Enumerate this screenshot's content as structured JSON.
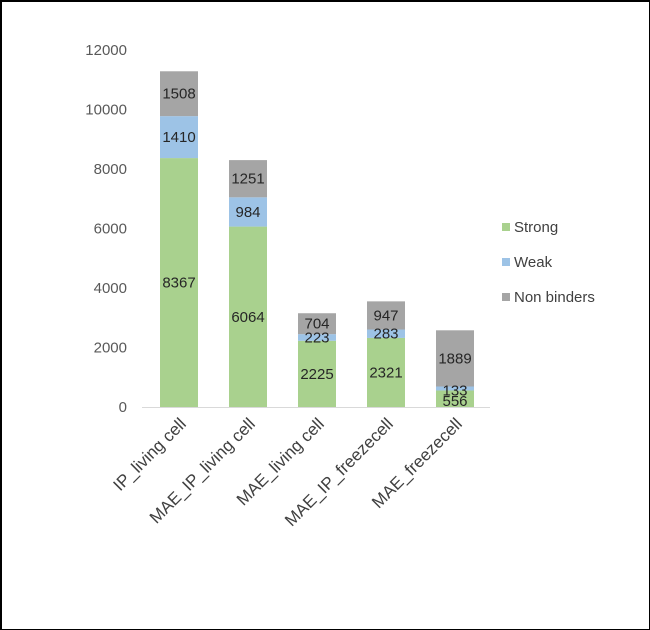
{
  "chart_data": {
    "type": "bar",
    "stacked": true,
    "title": "",
    "xlabel": "",
    "ylabel": "",
    "categories": [
      "IP_living cell",
      "MAE_IP_living cell",
      "MAE_living cell",
      "MAE_IP_freezecell",
      "MAE_freezecell"
    ],
    "series": [
      {
        "name": "Strong",
        "color": "#a9d18e",
        "values": [
          8367,
          6064,
          2225,
          2321,
          556
        ]
      },
      {
        "name": "Weak",
        "color": "#9dc3e6",
        "values": [
          1410,
          984,
          223,
          283,
          133
        ]
      },
      {
        "name": "Non binders",
        "color": "#a5a5a5",
        "values": [
          1508,
          1251,
          704,
          947,
          1889
        ]
      }
    ],
    "ylim": [
      0,
      12000
    ],
    "yticks": [
      "0",
      "2000",
      "4000",
      "6000",
      "8000",
      "10000",
      "12000"
    ],
    "grid": false,
    "legend_position": "right",
    "data_labels": true
  }
}
